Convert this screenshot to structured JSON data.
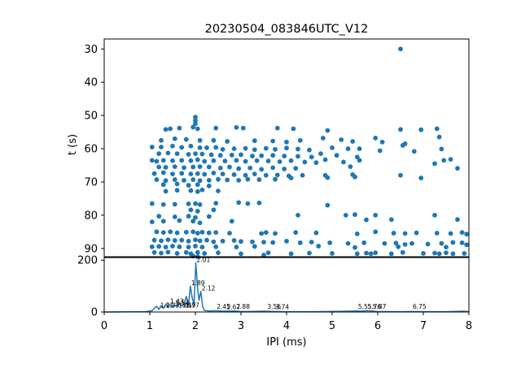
{
  "chart_data": [
    {
      "type": "scatter",
      "title": "20230504_083846UTC_V12",
      "xlabel": "",
      "ylabel": "t (s)",
      "xlim": [
        0,
        8
      ],
      "ylim": [
        92.5,
        27
      ],
      "y_inverted": true,
      "yticks": [
        30,
        40,
        50,
        60,
        70,
        80,
        90
      ],
      "color": "#1f77b4",
      "points": [
        [
          6.5,
          30
        ],
        [
          2.0,
          50.5
        ],
        [
          2.0,
          51.5
        ],
        [
          2.0,
          52.5
        ],
        [
          1.95,
          53.5
        ],
        [
          2.05,
          54
        ],
        [
          1.65,
          53.8
        ],
        [
          1.45,
          54
        ],
        [
          1.35,
          54.2
        ],
        [
          2.45,
          53.8
        ],
        [
          2.9,
          53.6
        ],
        [
          3.05,
          53.8
        ],
        [
          3.8,
          53.8
        ],
        [
          4.15,
          54
        ],
        [
          4.9,
          54.5
        ],
        [
          6.5,
          54.2
        ],
        [
          6.95,
          54.3
        ],
        [
          7.3,
          54
        ],
        [
          7.35,
          56.5
        ],
        [
          1.25,
          57.5
        ],
        [
          1.55,
          57
        ],
        [
          1.8,
          57.2
        ],
        [
          2.1,
          57.5
        ],
        [
          2.4,
          57.5
        ],
        [
          2.7,
          57.8
        ],
        [
          3.3,
          57.6
        ],
        [
          3.7,
          57.7
        ],
        [
          4.0,
          58
        ],
        [
          4.3,
          57.5
        ],
        [
          4.8,
          56.8
        ],
        [
          5.2,
          57.3
        ],
        [
          5.45,
          57.8
        ],
        [
          5.95,
          56.8
        ],
        [
          6.1,
          58
        ],
        [
          6.6,
          58.5
        ],
        [
          6.55,
          59
        ],
        [
          1.05,
          59.5
        ],
        [
          1.25,
          59.5
        ],
        [
          1.5,
          59.2
        ],
        [
          1.7,
          59.6
        ],
        [
          1.9,
          59.2
        ],
        [
          2.1,
          59.7
        ],
        [
          2.25,
          59.7
        ],
        [
          2.45,
          59.6
        ],
        [
          2.6,
          60.2
        ],
        [
          2.85,
          60
        ],
        [
          3.1,
          59.9
        ],
        [
          3.3,
          60.3
        ],
        [
          3.55,
          59.9
        ],
        [
          3.75,
          60.2
        ],
        [
          4.0,
          59.8
        ],
        [
          4.25,
          60.1
        ],
        [
          4.5,
          60.4
        ],
        [
          5.0,
          59.7
        ],
        [
          5.35,
          60
        ],
        [
          5.6,
          60
        ],
        [
          6.05,
          60.6
        ],
        [
          6.8,
          60.8
        ],
        [
          7.4,
          60.1
        ],
        [
          1.2,
          61.5
        ],
        [
          1.4,
          61.3
        ],
        [
          1.6,
          61.5
        ],
        [
          1.85,
          61.7
        ],
        [
          2.0,
          61.5
        ],
        [
          2.15,
          61.6
        ],
        [
          2.35,
          61.8
        ],
        [
          2.55,
          62
        ],
        [
          2.8,
          61.9
        ],
        [
          3.0,
          61.8
        ],
        [
          3.25,
          62.2
        ],
        [
          3.45,
          62.1
        ],
        [
          3.7,
          62
        ],
        [
          3.95,
          62.2
        ],
        [
          4.25,
          62.3
        ],
        [
          4.55,
          62.5
        ],
        [
          4.75,
          61.5
        ],
        [
          5.1,
          62
        ],
        [
          5.55,
          62.5
        ],
        [
          1.05,
          63.5
        ],
        [
          1.15,
          63.8
        ],
        [
          1.3,
          63.5
        ],
        [
          1.5,
          63.6
        ],
        [
          1.7,
          63.5
        ],
        [
          1.9,
          63.6
        ],
        [
          2.05,
          63.3
        ],
        [
          2.2,
          63.8
        ],
        [
          2.4,
          63.6
        ],
        [
          2.65,
          63.7
        ],
        [
          2.9,
          63.5
        ],
        [
          3.1,
          63.8
        ],
        [
          3.35,
          63.6
        ],
        [
          3.6,
          63.7
        ],
        [
          3.85,
          63.9
        ],
        [
          4.1,
          63.6
        ],
        [
          4.4,
          64
        ],
        [
          4.65,
          64.2
        ],
        [
          4.85,
          63.3
        ],
        [
          5.25,
          64
        ],
        [
          5.6,
          63.5
        ],
        [
          7.45,
          63.5
        ],
        [
          7.6,
          63.2
        ],
        [
          7.25,
          64.5
        ],
        [
          1.2,
          65.5
        ],
        [
          1.35,
          65.6
        ],
        [
          1.55,
          65.4
        ],
        [
          1.75,
          65.7
        ],
        [
          1.95,
          65.5
        ],
        [
          2.1,
          65.4
        ],
        [
          2.3,
          65.5
        ],
        [
          2.55,
          65.8
        ],
        [
          2.75,
          65.5
        ],
        [
          2.95,
          66
        ],
        [
          3.2,
          65.8
        ],
        [
          3.45,
          66.2
        ],
        [
          3.7,
          65.7
        ],
        [
          3.95,
          66.1
        ],
        [
          4.2,
          65.9
        ],
        [
          5.4,
          65.4
        ],
        [
          7.75,
          65.9
        ],
        [
          1.1,
          67.5
        ],
        [
          1.3,
          67.2
        ],
        [
          1.5,
          67.6
        ],
        [
          1.7,
          67.4
        ],
        [
          1.9,
          67.6
        ],
        [
          2.05,
          67.5
        ],
        [
          2.2,
          67.7
        ],
        [
          2.4,
          67.3
        ],
        [
          2.6,
          67.6
        ],
        [
          2.85,
          67.8
        ],
        [
          3.1,
          68
        ],
        [
          3.3,
          67.6
        ],
        [
          3.55,
          68
        ],
        [
          3.8,
          67.9
        ],
        [
          4.05,
          68.2
        ],
        [
          4.35,
          68
        ],
        [
          4.85,
          68
        ],
        [
          5.45,
          67.8
        ],
        [
          6.5,
          68
        ],
        [
          1.15,
          69.3
        ],
        [
          1.35,
          69.6
        ],
        [
          1.55,
          69.3
        ],
        [
          1.75,
          69.5
        ],
        [
          1.95,
          69.3
        ],
        [
          2.1,
          69.6
        ],
        [
          2.3,
          69.5
        ],
        [
          2.5,
          69.2
        ],
        [
          2.7,
          69.4
        ],
        [
          2.95,
          69.5
        ],
        [
          3.15,
          69.2
        ],
        [
          3.4,
          69.3
        ],
        [
          3.75,
          69.2
        ],
        [
          4.1,
          68.8
        ],
        [
          4.9,
          68.7
        ],
        [
          5.5,
          68.5
        ],
        [
          6.95,
          68.8
        ],
        [
          1.3,
          70.8
        ],
        [
          1.6,
          70.6
        ],
        [
          1.85,
          71
        ],
        [
          2.05,
          70.8
        ],
        [
          2.3,
          71.2
        ],
        [
          1.35,
          72.8
        ],
        [
          1.6,
          72.5
        ],
        [
          1.9,
          72.6
        ],
        [
          2.05,
          72.9
        ],
        [
          2.15,
          72.4
        ],
        [
          2.5,
          72.7
        ],
        [
          1.05,
          76.5
        ],
        [
          1.3,
          76.8
        ],
        [
          1.55,
          76.7
        ],
        [
          1.85,
          76.6
        ],
        [
          2.0,
          76.5
        ],
        [
          2.1,
          76.8
        ],
        [
          2.45,
          76.4
        ],
        [
          2.95,
          76.2
        ],
        [
          3.15,
          76.5
        ],
        [
          3.4,
          76.3
        ],
        [
          4.9,
          77
        ],
        [
          1.9,
          78.4
        ],
        [
          2.05,
          78.8
        ],
        [
          2.4,
          78.4
        ],
        [
          1.2,
          80.3
        ],
        [
          1.55,
          80.5
        ],
        [
          1.85,
          80.3
        ],
        [
          2.0,
          80.7
        ],
        [
          2.3,
          80.4
        ],
        [
          4.25,
          80
        ],
        [
          5.3,
          80
        ],
        [
          5.5,
          79.8
        ],
        [
          5.95,
          80
        ],
        [
          7.25,
          80
        ],
        [
          1.05,
          82
        ],
        [
          1.3,
          81.8
        ],
        [
          1.65,
          81.6
        ],
        [
          1.95,
          81.8
        ],
        [
          2.1,
          82.3
        ],
        [
          2.8,
          81.8
        ],
        [
          5.75,
          81.4
        ],
        [
          6.3,
          81.3
        ],
        [
          7.75,
          81.3
        ],
        [
          1.15,
          85
        ],
        [
          1.3,
          85.2
        ],
        [
          1.45,
          85
        ],
        [
          1.6,
          85.3
        ],
        [
          1.8,
          85.1
        ],
        [
          1.95,
          85
        ],
        [
          2.05,
          85.4
        ],
        [
          2.15,
          85.1
        ],
        [
          2.3,
          85.3
        ],
        [
          2.45,
          85.2
        ],
        [
          2.75,
          85.4
        ],
        [
          3.45,
          85.5
        ],
        [
          3.55,
          85.2
        ],
        [
          3.75,
          85.5
        ],
        [
          4.2,
          85.2
        ],
        [
          4.65,
          85.3
        ],
        [
          5.55,
          85.6
        ],
        [
          5.95,
          85
        ],
        [
          6.35,
          85.4
        ],
        [
          6.6,
          85.5
        ],
        [
          6.85,
          85.3
        ],
        [
          7.3,
          85.4
        ],
        [
          7.6,
          85.5
        ],
        [
          7.85,
          85.2
        ],
        [
          7.95,
          85.7
        ],
        [
          1.1,
          87.5
        ],
        [
          1.25,
          87.7
        ],
        [
          1.4,
          87.4
        ],
        [
          1.55,
          87.6
        ],
        [
          1.7,
          87.5
        ],
        [
          1.85,
          87.8
        ],
        [
          2.0,
          87.4
        ],
        [
          2.1,
          87.7
        ],
        [
          2.25,
          87.5
        ],
        [
          2.4,
          88
        ],
        [
          2.6,
          87.8
        ],
        [
          2.85,
          87.6
        ],
        [
          3.0,
          87.9
        ],
        [
          3.25,
          88
        ],
        [
          3.5,
          88.1
        ],
        [
          3.7,
          88.2
        ],
        [
          4.0,
          87.8
        ],
        [
          4.3,
          88.3
        ],
        [
          4.55,
          88.1
        ],
        [
          4.95,
          88.3
        ],
        [
          5.35,
          88.5
        ],
        [
          5.7,
          88.3
        ],
        [
          6.15,
          88.5
        ],
        [
          6.4,
          88.4
        ],
        [
          6.6,
          88.8
        ],
        [
          6.75,
          88.5
        ],
        [
          7.1,
          88.7
        ],
        [
          7.4,
          88.5
        ],
        [
          7.65,
          88.2
        ],
        [
          7.85,
          88.3
        ],
        [
          7.95,
          88.9
        ],
        [
          1.05,
          89.5
        ],
        [
          1.2,
          89.4
        ],
        [
          1.35,
          89.6
        ],
        [
          1.5,
          89.3
        ],
        [
          1.65,
          89.5
        ],
        [
          1.85,
          89.6
        ],
        [
          2.0,
          89.3
        ],
        [
          2.15,
          89.6
        ],
        [
          2.45,
          89.5
        ],
        [
          2.9,
          89.6
        ],
        [
          3.3,
          89.4
        ],
        [
          4.7,
          89.3
        ],
        [
          5.5,
          89.7
        ],
        [
          6.45,
          89.5
        ],
        [
          7.5,
          89.6
        ],
        [
          1.1,
          91.2
        ],
        [
          1.25,
          91.4
        ],
        [
          1.4,
          91.1
        ],
        [
          1.6,
          91.5
        ],
        [
          1.8,
          91.2
        ],
        [
          1.9,
          91.6
        ],
        [
          2.05,
          91.2
        ],
        [
          2.2,
          91.5
        ],
        [
          2.5,
          91.3
        ],
        [
          3.0,
          91.6
        ],
        [
          3.6,
          91.3
        ],
        [
          4.1,
          91.6
        ],
        [
          4.5,
          91.4
        ],
        [
          5.0,
          91.5
        ],
        [
          5.55,
          91.6
        ],
        [
          5.75,
          91.4
        ],
        [
          5.85,
          91.6
        ],
        [
          5.95,
          91.3
        ],
        [
          6.3,
          91.6
        ],
        [
          6.55,
          91.2
        ],
        [
          7.0,
          91.5
        ],
        [
          7.25,
          91.4
        ],
        [
          7.35,
          91.6
        ],
        [
          7.5,
          91.3
        ],
        [
          7.65,
          91.6
        ],
        [
          7.9,
          91.5
        ],
        [
          3.5,
          92
        ],
        [
          2.05,
          92.5
        ],
        [
          1.95,
          92.3
        ]
      ]
    },
    {
      "type": "line",
      "xlabel": "IPI (ms)",
      "ylabel": "",
      "xlim": [
        0,
        8
      ],
      "ylim": [
        0,
        210
      ],
      "xticks": [
        0,
        1,
        2,
        3,
        4,
        5,
        6,
        7,
        8
      ],
      "yticks": [
        0,
        200
      ],
      "color": "#1f77b4",
      "x": [
        0,
        0.9,
        1.05,
        1.1,
        1.15,
        1.2,
        1.25,
        1.3,
        1.35,
        1.4,
        1.45,
        1.5,
        1.55,
        1.6,
        1.65,
        1.7,
        1.75,
        1.8,
        1.85,
        1.89,
        1.93,
        1.97,
        2.01,
        2.05,
        2.08,
        2.12,
        2.16,
        2.2,
        2.3,
        2.45,
        2.6,
        2.88,
        3.0,
        3.2,
        3.5,
        3.74,
        4.0,
        4.5,
        5.0,
        5.55,
        5.65,
        5.76,
        5.87,
        6.0,
        6.5,
        6.75,
        7.0,
        7.5,
        7.9,
        8.0
      ],
      "y": [
        0,
        1,
        5,
        15,
        22,
        10,
        25,
        14,
        30,
        18,
        28,
        20,
        26,
        22,
        32,
        24,
        30,
        60,
        30,
        100,
        55,
        30,
        190,
        90,
        45,
        80,
        20,
        6,
        4,
        5,
        3,
        4,
        2,
        2,
        3,
        2,
        1,
        1,
        2,
        4,
        3,
        5,
        4,
        2,
        1,
        2,
        1,
        1,
        3,
        1
      ],
      "annotations": [
        {
          "x": 2.01,
          "y": 190,
          "text": "2.01"
        },
        {
          "x": 1.89,
          "y": 100,
          "text": "1.89"
        },
        {
          "x": 2.12,
          "y": 80,
          "text": "2.12"
        },
        {
          "x": 1.43,
          "y": 30,
          "text": "1.43"
        },
        {
          "x": 1.54,
          "y": 24,
          "text": "1.54"
        },
        {
          "x": 1.21,
          "y": 14,
          "text": "1.21"
        },
        {
          "x": 1.33,
          "y": 14,
          "text": "1.33"
        },
        {
          "x": 1.61,
          "y": 14,
          "text": "1.61"
        },
        {
          "x": 1.69,
          "y": 14,
          "text": "1.69"
        },
        {
          "x": 1.77,
          "y": 14,
          "text": "1.77"
        },
        {
          "x": 2.45,
          "y": 10,
          "text": "2.45"
        },
        {
          "x": 2.67,
          "y": 8,
          "text": "2.67"
        },
        {
          "x": 2.88,
          "y": 10,
          "text": "2.88"
        },
        {
          "x": 3.56,
          "y": 10,
          "text": "3.56"
        },
        {
          "x": 3.74,
          "y": 8,
          "text": "3.74"
        },
        {
          "x": 5.55,
          "y": 10,
          "text": "5.55"
        },
        {
          "x": 5.76,
          "y": 10,
          "text": "5.76"
        },
        {
          "x": 5.87,
          "y": 10,
          "text": "5.87"
        },
        {
          "x": 6.75,
          "y": 10,
          "text": "6.75"
        }
      ]
    }
  ]
}
